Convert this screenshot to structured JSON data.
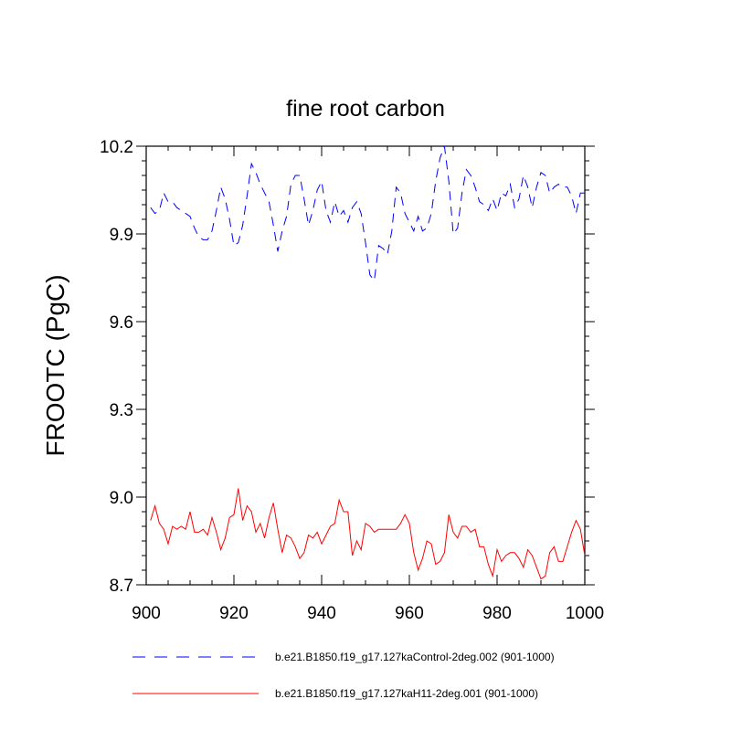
{
  "chart_data": {
    "type": "line",
    "title": "fine root carbon",
    "ylabel": "FROOTC  (PgC)",
    "xlabel": "",
    "xlim": [
      900,
      1000
    ],
    "ylim": [
      8.7,
      10.2
    ],
    "x_ticks": [
      900,
      920,
      940,
      960,
      980,
      1000
    ],
    "y_ticks": [
      8.7,
      9.0,
      9.3,
      9.6,
      9.9,
      10.2
    ],
    "y_tick_labels": [
      "8.7",
      "9.0",
      "9.3",
      "9.6",
      "9.9",
      "10.2"
    ],
    "grid": false,
    "legend_position": "bottom",
    "x": [
      901,
      902,
      903,
      904,
      905,
      906,
      907,
      908,
      909,
      910,
      911,
      912,
      913,
      914,
      915,
      916,
      917,
      918,
      919,
      920,
      921,
      922,
      923,
      924,
      925,
      926,
      927,
      928,
      929,
      930,
      931,
      932,
      933,
      934,
      935,
      936,
      937,
      938,
      939,
      940,
      941,
      942,
      943,
      944,
      945,
      946,
      947,
      948,
      949,
      950,
      951,
      952,
      953,
      954,
      955,
      956,
      957,
      958,
      959,
      960,
      961,
      962,
      963,
      964,
      965,
      966,
      967,
      968,
      969,
      970,
      971,
      972,
      973,
      974,
      975,
      976,
      977,
      978,
      979,
      980,
      981,
      982,
      983,
      984,
      985,
      986,
      987,
      988,
      989,
      990,
      991,
      992,
      993,
      994,
      995,
      996,
      997,
      998,
      999,
      1000
    ],
    "series": [
      {
        "name": "b.e21.B1850.f19_g17.127kaControl-2deg.002 (901-1000)",
        "color": "#0000ff",
        "dash": "dashed",
        "values": [
          9.99,
          9.97,
          9.98,
          10.04,
          10.01,
          10.01,
          9.99,
          9.98,
          9.97,
          9.96,
          9.92,
          9.89,
          9.88,
          9.88,
          9.91,
          9.98,
          10.06,
          10.02,
          9.95,
          9.86,
          9.87,
          9.93,
          10.03,
          10.14,
          10.11,
          10.07,
          10.04,
          10.01,
          9.93,
          9.84,
          9.91,
          9.96,
          10.07,
          10.1,
          10.1,
          10.02,
          9.93,
          9.98,
          10.05,
          10.08,
          9.98,
          9.94,
          10.01,
          9.96,
          9.98,
          9.94,
          9.99,
          10.01,
          9.97,
          9.87,
          9.76,
          9.74,
          9.86,
          9.85,
          9.83,
          9.91,
          10.06,
          10.04,
          9.97,
          9.94,
          9.91,
          9.96,
          9.91,
          9.92,
          9.97,
          10.08,
          10.16,
          10.2,
          10.08,
          9.9,
          9.92,
          10.04,
          10.12,
          10.1,
          10.06,
          10.01,
          10.0,
          9.98,
          10.02,
          9.98,
          10.04,
          10.03,
          10.07,
          9.99,
          10.02,
          10.1,
          10.06,
          9.99,
          10.06,
          10.11,
          10.1,
          10.04,
          10.06,
          10.07,
          10.06,
          10.06,
          10.03,
          9.97,
          10.04,
          10.04
        ]
      },
      {
        "name": "b.e21.B1850.f19_g17.127kaH11-2deg.001 (901-1000)",
        "color": "#ff0000",
        "dash": "solid",
        "values": [
          8.92,
          8.97,
          8.91,
          8.89,
          8.84,
          8.9,
          8.89,
          8.9,
          8.89,
          8.95,
          8.88,
          8.88,
          8.89,
          8.87,
          8.93,
          8.88,
          8.82,
          8.86,
          8.93,
          8.94,
          9.03,
          8.92,
          8.97,
          8.95,
          8.88,
          8.91,
          8.86,
          8.93,
          8.98,
          8.89,
          8.81,
          8.87,
          8.86,
          8.83,
          8.79,
          8.81,
          8.87,
          8.86,
          8.88,
          8.84,
          8.87,
          8.9,
          8.91,
          8.99,
          8.95,
          8.95,
          8.8,
          8.85,
          8.82,
          8.91,
          8.9,
          8.88,
          8.89,
          8.89,
          8.89,
          8.89,
          8.89,
          8.91,
          8.94,
          8.91,
          8.81,
          8.75,
          8.79,
          8.85,
          8.84,
          8.77,
          8.78,
          8.81,
          8.94,
          8.88,
          8.86,
          8.9,
          8.9,
          8.88,
          8.89,
          8.83,
          8.83,
          8.77,
          8.73,
          8.82,
          8.78,
          8.8,
          8.81,
          8.81,
          8.79,
          8.76,
          8.82,
          8.8,
          8.76,
          8.72,
          8.73,
          8.81,
          8.83,
          8.78,
          8.78,
          8.83,
          8.88,
          8.92,
          8.89,
          8.8
        ]
      }
    ]
  }
}
